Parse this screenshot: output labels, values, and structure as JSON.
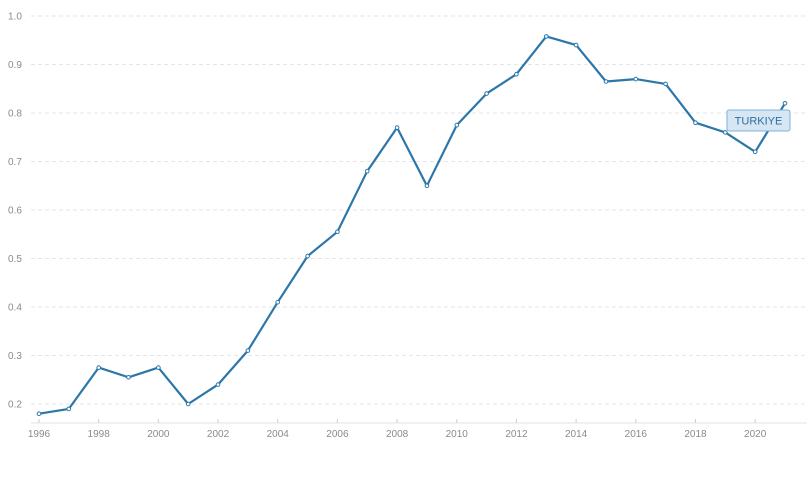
{
  "chart_data": {
    "type": "line",
    "title": "",
    "xlabel": "",
    "ylabel": "",
    "x": [
      1996,
      1997,
      1998,
      1999,
      2000,
      2001,
      2002,
      2003,
      2004,
      2005,
      2006,
      2007,
      2008,
      2009,
      2010,
      2011,
      2012,
      2013,
      2014,
      2015,
      2016,
      2017,
      2018,
      2019,
      2020,
      2021
    ],
    "series": [
      {
        "name": "TURKIYE",
        "color": "#2c76a9",
        "values": [
          0.18,
          0.19,
          0.275,
          0.255,
          0.275,
          0.2,
          0.24,
          0.31,
          0.41,
          0.505,
          0.555,
          0.68,
          0.77,
          0.65,
          0.775,
          0.84,
          0.88,
          0.958,
          0.94,
          0.865,
          0.87,
          0.86,
          0.78,
          0.76,
          0.72,
          0.82
        ]
      }
    ],
    "ylim": [
      0.2,
      1.0
    ],
    "yticks": [
      "0.2",
      "0.3",
      "0.4",
      "0.5",
      "0.6",
      "0.7",
      "0.8",
      "0.9",
      "1.0"
    ],
    "xticks": [
      "1996",
      "1998",
      "2000",
      "2002",
      "2004",
      "2006",
      "2008",
      "2010",
      "2012",
      "2014",
      "2016",
      "2018",
      "2020"
    ],
    "grid": "horizontal-dashed",
    "series_label": "TURKIYE"
  }
}
